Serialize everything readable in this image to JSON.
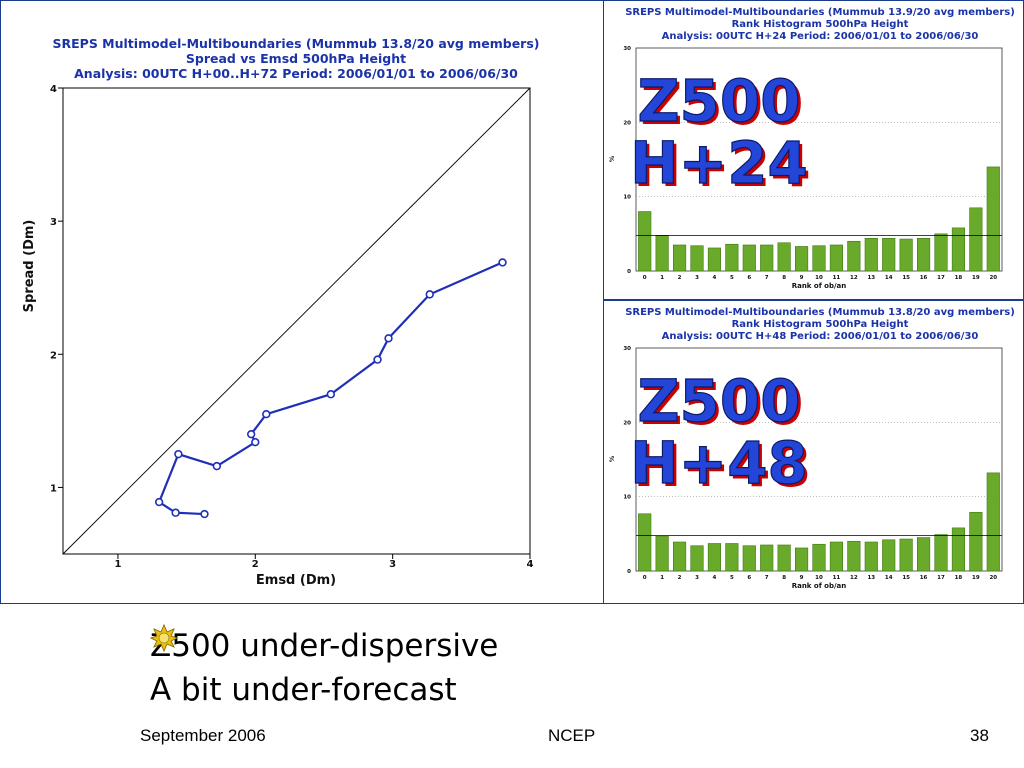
{
  "colors": {
    "title": "#1b33a8",
    "line": "#1f2fb8",
    "bar": "#6aaa2a",
    "bar_edge": "#3f7a15",
    "overlay_fill": "#2446d8",
    "overlay_shadow": "#c80000"
  },
  "chart_data": [
    {
      "type": "line",
      "title_lines": [
        "SREPS Multimodel-Multiboundaries   (Mummub 13.8/20 avg members)",
        "Spread vs Emsd  500hPa Height",
        "Analysis: 00UTC  H+00..H+72   Period: 2006/01/01 to 2006/06/30"
      ],
      "xlabel": "Emsd (Dm)",
      "ylabel": "Spread (Dm)",
      "xlim": [
        0.6,
        4
      ],
      "ylim": [
        0.5,
        4
      ],
      "xticks": [
        "1",
        "2",
        "3",
        "4"
      ],
      "yticks": [
        "1",
        "2",
        "3",
        "4"
      ],
      "grid": false,
      "diagonal": true,
      "series": [
        {
          "x": [
            1.63,
            1.42,
            1.3,
            1.44,
            1.72,
            2.0,
            1.97,
            2.08,
            2.55,
            2.89,
            2.97,
            3.27,
            3.8
          ],
          "y": [
            0.8,
            0.81,
            0.89,
            1.25,
            1.16,
            1.34,
            1.4,
            1.55,
            1.7,
            1.96,
            2.12,
            2.45,
            2.69
          ]
        }
      ]
    },
    {
      "type": "bar",
      "title_lines": [
        "SREPS Multimodel-Multiboundaries  (Mummub 13.9/20 avg members)",
        "Rank Histogram  500hPa Height",
        "Analysis: 00UTC  H+24   Period: 2006/01/01 to 2006/06/30"
      ],
      "xlabel": "Rank of ob/an",
      "ylabel": "%",
      "ylim": [
        0,
        30
      ],
      "yticks": [
        "0",
        "10",
        "20",
        "30"
      ],
      "reference_line": 4.76,
      "overlay_lines": [
        "Z500",
        "H+24"
      ],
      "categories": [
        "0",
        "1",
        "2",
        "3",
        "4",
        "5",
        "6",
        "7",
        "8",
        "9",
        "10",
        "11",
        "12",
        "13",
        "14",
        "15",
        "16",
        "17",
        "18",
        "19",
        "20"
      ],
      "values": [
        8.0,
        4.8,
        3.5,
        3.4,
        3.1,
        3.6,
        3.5,
        3.5,
        3.8,
        3.3,
        3.4,
        3.5,
        4.0,
        4.4,
        4.4,
        4.3,
        4.4,
        5.0,
        5.8,
        8.5,
        14.0
      ]
    },
    {
      "type": "bar",
      "title_lines": [
        "SREPS Multimodel-Multiboundaries  (Mummub 13.8/20 avg members)",
        "Rank Histogram  500hPa Height",
        "Analysis: 00UTC  H+48   Period: 2006/01/01 to 2006/06/30"
      ],
      "xlabel": "Rank of ob/an",
      "ylabel": "%",
      "ylim": [
        0,
        30
      ],
      "yticks": [
        "0",
        "10",
        "20",
        "30"
      ],
      "reference_line": 4.76,
      "overlay_lines": [
        "Z500",
        "H+48"
      ],
      "categories": [
        "0",
        "1",
        "2",
        "3",
        "4",
        "5",
        "6",
        "7",
        "8",
        "9",
        "10",
        "11",
        "12",
        "13",
        "14",
        "15",
        "16",
        "17",
        "18",
        "19",
        "20"
      ],
      "values": [
        7.7,
        4.7,
        3.9,
        3.4,
        3.7,
        3.7,
        3.4,
        3.5,
        3.5,
        3.1,
        3.6,
        3.9,
        4.0,
        3.9,
        4.2,
        4.3,
        4.5,
        4.9,
        5.8,
        7.9,
        13.2
      ]
    }
  ],
  "bullets": [
    {
      "icon": "sun-bullet-icon",
      "text": "Z500 under-dispersive"
    },
    {
      "icon": "sun-bullet-icon",
      "text": "A bit under-forecast"
    }
  ],
  "footer": {
    "date": "September 2006",
    "org": "NCEP",
    "page": "38"
  }
}
